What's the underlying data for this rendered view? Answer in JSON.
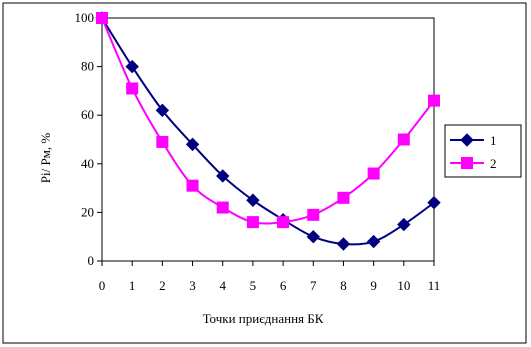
{
  "chart_data": {
    "type": "line",
    "title": "",
    "xlabel": "Точки приєднання БК",
    "ylabel": "Pi/ Pм, %",
    "x": [
      0,
      1,
      2,
      3,
      4,
      5,
      6,
      7,
      8,
      9,
      10,
      11
    ],
    "xlim": [
      0,
      11
    ],
    "ylim": [
      0,
      100
    ],
    "y_ticks": [
      0,
      20,
      40,
      60,
      80,
      100
    ],
    "grid": false,
    "legend_position": "right",
    "series": [
      {
        "name": "1",
        "color": "#000080",
        "marker": "diamond",
        "values": [
          100,
          80,
          62,
          48,
          35,
          25,
          17,
          10,
          7,
          8,
          15,
          24
        ]
      },
      {
        "name": "2",
        "color": "#FF00FF",
        "marker": "square",
        "values": [
          100,
          71,
          49,
          31,
          22,
          16,
          16,
          19,
          26,
          36,
          50,
          66
        ]
      }
    ]
  }
}
